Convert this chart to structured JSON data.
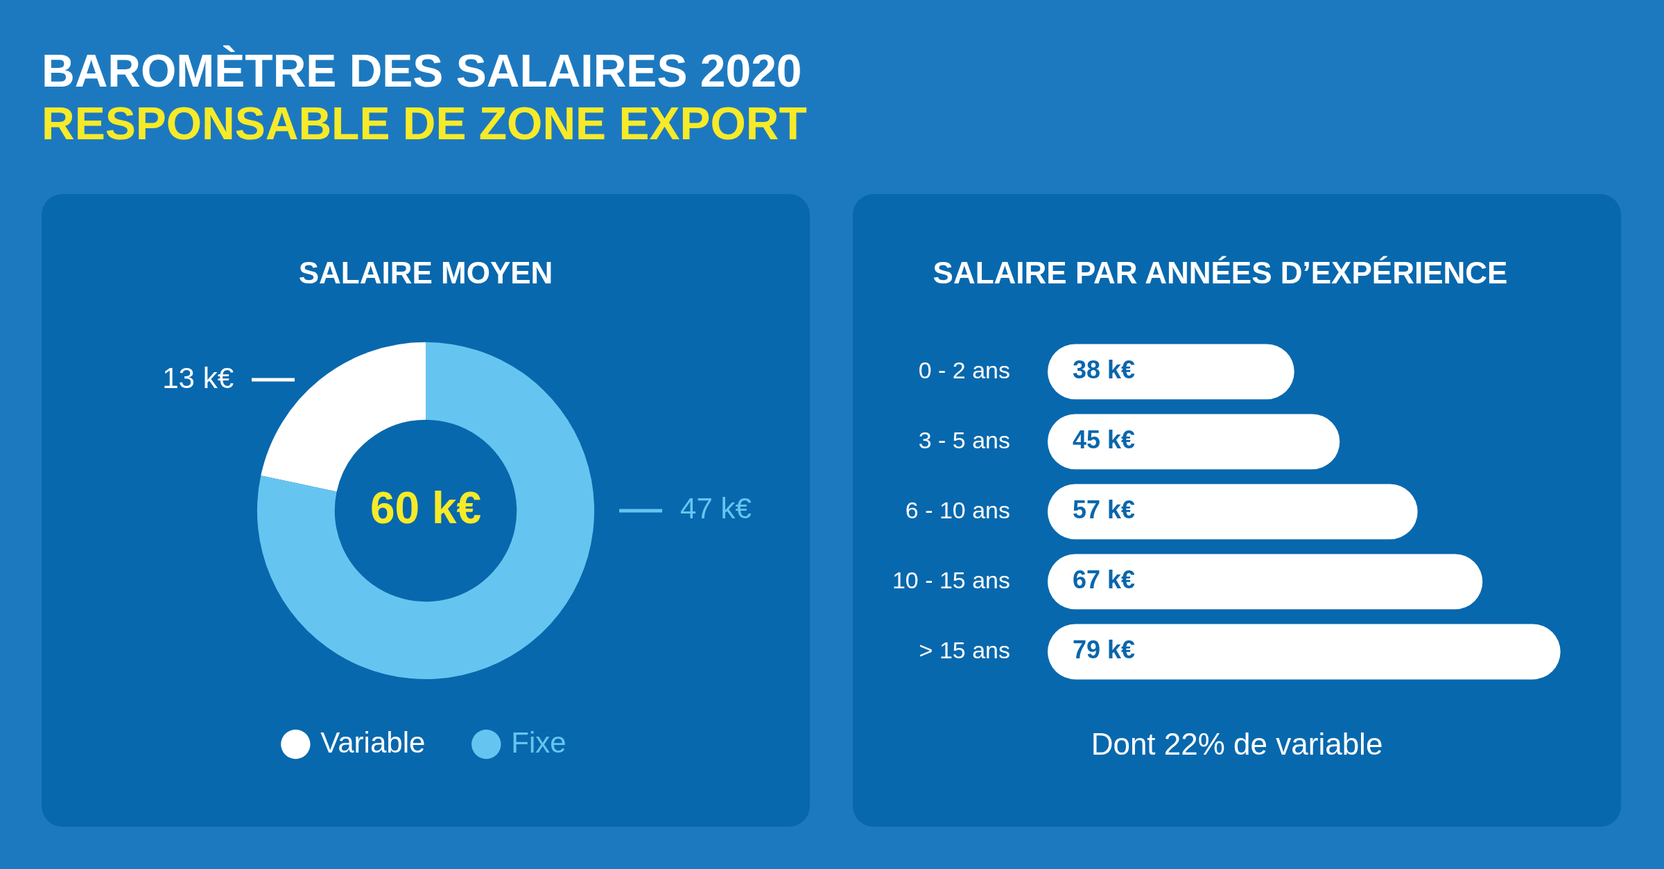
{
  "chart_data": [
    {
      "type": "other",
      "title": "BAROMÈTRE DES SALAIRES 2020",
      "subtitle": "RESPONSABLE DE ZONE EXPORT"
    },
    {
      "type": "donut",
      "title": "SALAIRE MOYEN",
      "categories": [
        "Variable",
        "Fixe"
      ],
      "values": [
        13,
        47
      ],
      "colors": [
        "#ffffff",
        "#66c5f0"
      ],
      "value_labels": [
        "13 k€",
        "47 k€"
      ],
      "annotations": [
        "60 k€"
      ],
      "legend": "bottom"
    },
    {
      "type": "bar",
      "orientation": "horizontal",
      "title": "SALAIRE PAR ANNÉES D’EXPÉRIENCE",
      "categories": [
        "0 - 2 ans",
        "3 - 5 ans",
        "6 - 10 ans",
        "10 - 15 ans",
        "> 15 ans"
      ],
      "values": [
        38,
        45,
        57,
        67,
        79
      ],
      "color": "#ffffff",
      "value_labels": [
        "38 k€",
        "45 k€",
        "57 k€",
        "67 k€",
        "79 k€"
      ],
      "annotations": [
        "Dont 22% de variable"
      ],
      "tick_labels": "y",
      "legend": false
    }
  ]
}
